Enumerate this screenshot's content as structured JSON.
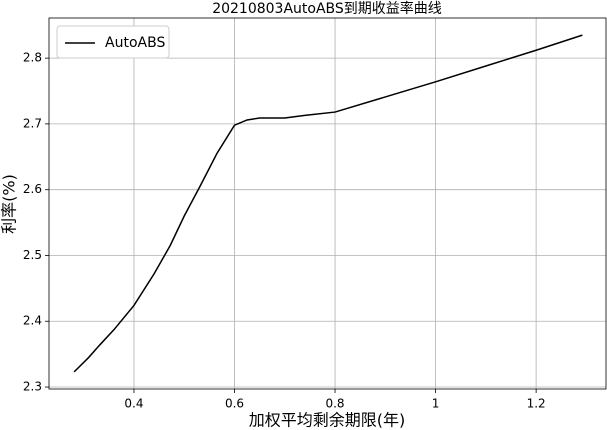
{
  "chart_data": {
    "type": "line",
    "title": "20210803AutoABS到期收益率曲线",
    "x_label": "加权平均剩余期限(年)",
    "y_label": "利率(%)",
    "x": [
      0.281,
      0.31,
      0.332,
      0.36,
      0.4,
      0.44,
      0.472,
      0.5,
      0.532,
      0.565,
      0.6,
      0.625,
      0.65,
      0.7,
      0.74,
      0.8,
      0.9,
      1.0,
      1.1,
      1.2,
      1.292
    ],
    "series": [
      {
        "name": "AutoABS",
        "color": "#000000",
        "values": [
          2.323,
          2.345,
          2.364,
          2.387,
          2.424,
          2.472,
          2.515,
          2.56,
          2.606,
          2.655,
          2.698,
          2.706,
          2.709,
          2.709,
          2.713,
          2.718,
          2.741,
          2.764,
          2.788,
          2.812,
          2.835
        ]
      }
    ],
    "xlim": [
      0.231,
      1.339
    ],
    "ylim": [
      2.297,
      2.861
    ],
    "xticks": [
      0.4,
      0.6,
      0.8,
      1.0,
      1.2
    ],
    "yticks": [
      2.3,
      2.4,
      2.5,
      2.6,
      2.7,
      2.8
    ],
    "grid": true,
    "legend": "upper-left"
  }
}
